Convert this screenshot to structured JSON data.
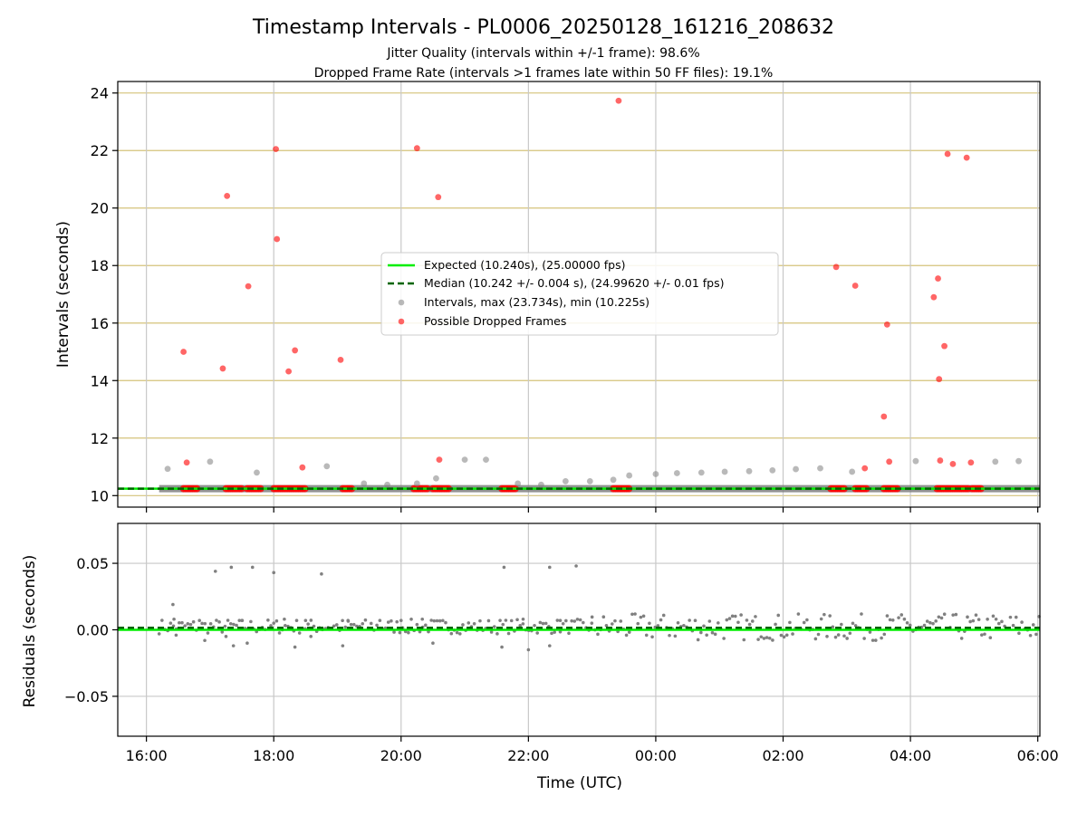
{
  "title": "Timestamp Intervals - PL0006_20250128_161216_208632",
  "subtitle_1": "Jitter Quality (intervals within +/-1 frame): 98.6%",
  "subtitle_2": "Dropped Frame Rate (intervals >1 frames late within 50 FF files): 19.1%",
  "colors": {
    "expected": "#00ee00",
    "median": "#006400",
    "intervals": "#808080",
    "dropped": "#ff0000",
    "top_grid": "#d4c27a",
    "grid": "#c8c8c8"
  },
  "chart_data": [
    {
      "type": "scatter",
      "panel": "intervals",
      "xlabel": "",
      "ylabel": "Intervals (seconds)",
      "xlim": [
        "15:33",
        "06:02"
      ],
      "ylim": [
        9.6,
        24.4
      ],
      "yticks": [
        10,
        12,
        14,
        16,
        18,
        20,
        22,
        24
      ],
      "xticks": [
        "16:00",
        "18:00",
        "20:00",
        "22:00",
        "00:00",
        "02:00",
        "04:00",
        "06:00"
      ],
      "grid": true,
      "legend_position": "center",
      "expected_interval": 10.24,
      "median_interval": 10.242,
      "legend": {
        "expected": "Expected (10.240s), (25.00000 fps)",
        "median": "Median (10.242 +/- 0.004 s), (24.99620 +/- 0.01 fps)",
        "intervals": "Intervals, max (23.734s), min (10.225s)",
        "dropped": "Possible Dropped Frames"
      },
      "baseline_band": {
        "x_start": "16:12",
        "x_end": "06:02",
        "value": 10.24
      },
      "series": [
        {
          "name": "Intervals, max (23.734s), min (10.225s)",
          "points": [
            [
              "16:20",
              10.93
            ],
            [
              "17:00",
              11.18
            ],
            [
              "17:44",
              10.8
            ],
            [
              "18:50",
              11.02
            ],
            [
              "19:25",
              10.42
            ],
            [
              "19:47",
              10.38
            ],
            [
              "20:15",
              10.42
            ],
            [
              "20:33",
              10.6
            ],
            [
              "21:00",
              11.25
            ],
            [
              "21:20",
              11.25
            ],
            [
              "21:50",
              10.42
            ],
            [
              "22:12",
              10.38
            ],
            [
              "22:35",
              10.5
            ],
            [
              "22:58",
              10.5
            ],
            [
              "23:20",
              10.55
            ],
            [
              "23:35",
              10.7
            ],
            [
              "00:00",
              10.75
            ],
            [
              "00:20",
              10.78
            ],
            [
              "00:43",
              10.8
            ],
            [
              "01:05",
              10.83
            ],
            [
              "01:28",
              10.85
            ],
            [
              "01:50",
              10.88
            ],
            [
              "02:12",
              10.92
            ],
            [
              "02:35",
              10.95
            ],
            [
              "03:05",
              10.83
            ],
            [
              "04:05",
              11.2
            ],
            [
              "05:20",
              11.18
            ],
            [
              "05:42",
              11.2
            ]
          ]
        },
        {
          "name": "Possible Dropped Frames",
          "points": [
            [
              "16:35",
              15.0
            ],
            [
              "16:38",
              11.15
            ],
            [
              "17:12",
              14.42
            ],
            [
              "17:16",
              20.42
            ],
            [
              "17:36",
              17.28
            ],
            [
              "18:02",
              22.05
            ],
            [
              "18:03",
              18.92
            ],
            [
              "18:14",
              14.32
            ],
            [
              "18:20",
              15.05
            ],
            [
              "18:27",
              10.98
            ],
            [
              "19:03",
              14.72
            ],
            [
              "20:15",
              22.08
            ],
            [
              "20:35",
              20.38
            ],
            [
              "20:36",
              11.25
            ],
            [
              "23:25",
              23.73
            ],
            [
              "02:50",
              17.95
            ],
            [
              "03:08",
              17.3
            ],
            [
              "03:17",
              10.95
            ],
            [
              "03:35",
              12.75
            ],
            [
              "03:38",
              15.95
            ],
            [
              "03:40",
              11.18
            ],
            [
              "04:22",
              16.9
            ],
            [
              "04:26",
              17.55
            ],
            [
              "04:27",
              14.05
            ],
            [
              "04:28",
              11.22
            ],
            [
              "04:32",
              15.2
            ],
            [
              "04:35",
              21.88
            ],
            [
              "04:40",
              11.1
            ],
            [
              "04:53",
              21.75
            ],
            [
              "04:57",
              11.15
            ]
          ]
        },
        {
          "name": "dropped_at_baseline",
          "x_ranges": [
            [
              "16:35",
              "16:48"
            ],
            [
              "17:15",
              "17:30"
            ],
            [
              "17:35",
              "17:48"
            ],
            [
              "18:00",
              "18:30"
            ],
            [
              "19:05",
              "19:15"
            ],
            [
              "20:12",
              "20:25"
            ],
            [
              "20:30",
              "20:45"
            ],
            [
              "21:35",
              "21:48"
            ],
            [
              "23:20",
              "23:35"
            ],
            [
              "02:45",
              "02:58"
            ],
            [
              "03:08",
              "03:20"
            ],
            [
              "03:35",
              "03:48"
            ],
            [
              "04:25",
              "04:55"
            ],
            [
              "04:58",
              "05:08"
            ]
          ],
          "value": 10.24
        }
      ]
    },
    {
      "type": "scatter",
      "panel": "residuals",
      "xlabel": "Time (UTC)",
      "ylabel": "Residuals (seconds)",
      "xlim": [
        "15:33",
        "06:02"
      ],
      "ylim": [
        -0.08,
        0.08
      ],
      "yticks": [
        0.05,
        0.0,
        -0.05
      ],
      "ytick_labels": [
        "0.05",
        "0.00",
        "−0.05"
      ],
      "xticks": [
        "16:00",
        "18:00",
        "20:00",
        "22:00",
        "00:00",
        "02:00",
        "04:00",
        "06:00"
      ],
      "xtick_labels": [
        "16:00",
        "18:00",
        "20:00",
        "22:00",
        "00:00",
        "02:00",
        "04:00",
        "06:00"
      ],
      "grid": true,
      "expected_residual": 0.0,
      "median_residual": 0.0015,
      "series": [
        {
          "name": "Residuals",
          "points": [
            [
              "16:25",
              0.019
            ],
            [
              "17:05",
              0.044
            ],
            [
              "17:20",
              0.047
            ],
            [
              "17:40",
              0.047
            ],
            [
              "18:00",
              0.043
            ],
            [
              "18:45",
              0.042
            ],
            [
              "21:37",
              0.047
            ],
            [
              "22:20",
              0.047
            ],
            [
              "22:45",
              0.048
            ],
            [
              "16:26",
              0.008
            ],
            [
              "16:50",
              0.007
            ],
            [
              "17:30",
              0.007
            ],
            [
              "18:10",
              0.008
            ],
            [
              "18:30",
              0.007
            ],
            [
              "19:10",
              0.007
            ],
            [
              "19:40",
              0.007
            ],
            [
              "20:00",
              0.007
            ],
            [
              "20:20",
              0.008
            ],
            [
              "21:55",
              0.008
            ],
            [
              "22:30",
              0.007
            ],
            [
              "16:28",
              -0.004
            ],
            [
              "16:55",
              -0.008
            ],
            [
              "17:15",
              -0.005
            ],
            [
              "17:22",
              -0.012
            ],
            [
              "17:35",
              -0.01
            ],
            [
              "18:20",
              -0.013
            ],
            [
              "18:35",
              -0.005
            ],
            [
              "19:05",
              -0.012
            ],
            [
              "20:30",
              -0.01
            ],
            [
              "21:35",
              -0.013
            ],
            [
              "22:00",
              -0.015
            ],
            [
              "22:20",
              -0.012
            ]
          ],
          "dense_band": [
            {
              "x_start": "16:12",
              "x_end": "23:00",
              "min": -0.003,
              "max": 0.008
            },
            {
              "x_start": "23:00",
              "x_end": "06:02",
              "min": -0.008,
              "max": 0.012
            }
          ]
        }
      ]
    }
  ]
}
